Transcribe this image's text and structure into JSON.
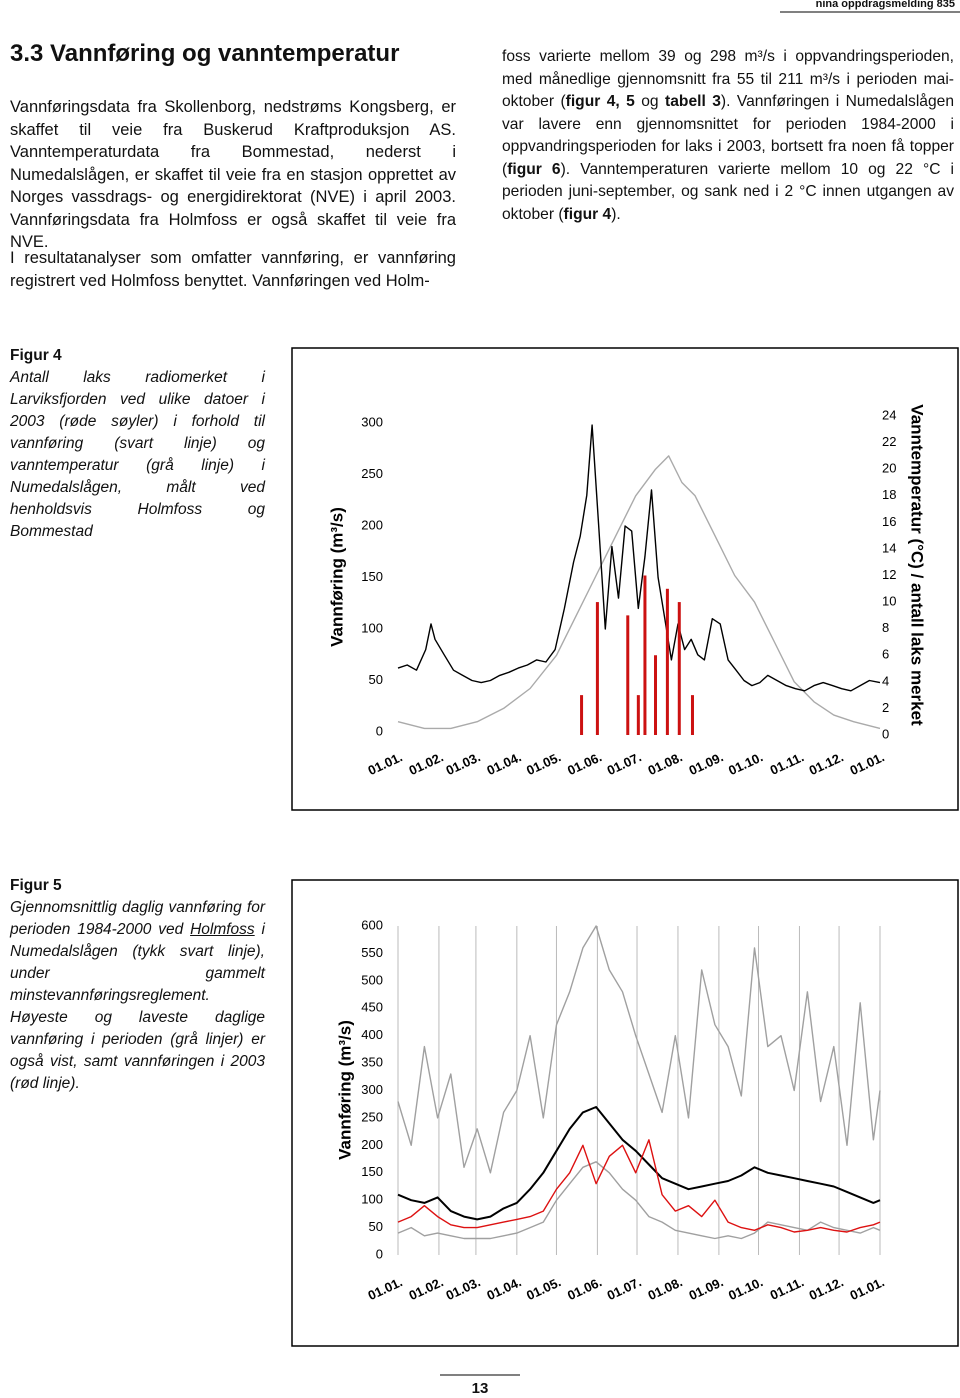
{
  "header": "nina oppdragsmelding 835",
  "section_title": "3.3 Vannføring og vanntemperatur",
  "left_paragraphs": [
    "Vannføringsdata fra Skollenborg, nedstrøms Kongsberg, er skaffet til veie fra Buskerud Kraftproduksjon AS. Vanntemperaturdata fra Bommestad, nederst i Numedalslågen, er skaffet til veie fra en stasjon opprettet av Norges vassdrags- og energidirektorat (NVE) i april 2003. Vannføringsdata fra Holmfoss er også skaffet til veie fra NVE.",
    "I resultatanalyser som omfatter vannføring, er vannføring registrert ved Holmfoss benyttet. Vannføringen ved Holm-"
  ],
  "right_paragraph": [
    "foss varierte mellom 39 og 298 m³/s i oppvandringsperioden, med månedlige gjennomsnitt fra 55 til 211 m³/s i perioden mai-oktober (",
    "figur 4, 5",
    " og ",
    "tabell 3",
    "). Vannføringen i Numedalslågen var lavere enn gjennomsnittet for perioden 1984-2000 i oppvandringsperioden for laks i 2003, bortsett fra noen få topper (",
    "figur 6",
    "). Vanntemperaturen varierte mellom 10 og 22 °C i perioden juni-september, og sank ned i 2 °C innen utgangen av oktober (",
    "figur 4",
    ")."
  ],
  "figures": [
    {
      "label": "Figur 4",
      "caption": [
        "Antall laks radiomerket i Larviksfjorden ved ulike datoer i 2003 (røde søyler) i forhold til vannføring (svart linje) og vanntemperatur (grå linje) i Numedalslågen, målt ved henholdsvis Holmfoss og Bommestad"
      ]
    },
    {
      "label": "Figur 5",
      "caption": [
        "Gjennomsnittlig daglig vannføring for perioden 1984-2000 ved ",
        "Holmfoss",
        " i Numedalslågen (tykk svart linje), under gammelt minstevannføringsreglement. Høyeste og laveste daglige vannføring i perioden (grå linjer) er også vist, samt vannføringen i 2003 (rød linje)."
      ]
    }
  ],
  "page_number": "13",
  "chart_data": [
    {
      "type": "line",
      "ylabel": "Vannføring (m³/s)",
      "y2label": "Vanntemperatur (°C) / antall laks merket",
      "xlim": [
        0,
        365
      ],
      "xticks": [
        {
          "value": 0,
          "label": "01.01."
        },
        {
          "value": 31,
          "label": "01.02."
        },
        {
          "value": 59,
          "label": "01.03."
        },
        {
          "value": 90,
          "label": "01.04."
        },
        {
          "value": 120,
          "label": "01.05."
        },
        {
          "value": 151,
          "label": "01.06."
        },
        {
          "value": 181,
          "label": "01.07."
        },
        {
          "value": 212,
          "label": "01.08."
        },
        {
          "value": 243,
          "label": "01.09."
        },
        {
          "value": 273,
          "label": "01.10."
        },
        {
          "value": 304,
          "label": "01.11."
        },
        {
          "value": 334,
          "label": "01.12."
        },
        {
          "value": 365,
          "label": "01.01."
        }
      ],
      "ylim": [
        0,
        300
      ],
      "yticks": [
        0,
        50,
        100,
        150,
        200,
        250,
        300
      ],
      "y2lim": [
        0,
        24
      ],
      "y2ticks": [
        0,
        2,
        4,
        6,
        8,
        10,
        12,
        14,
        16,
        18,
        20,
        22,
        24
      ],
      "grid": false,
      "series": [
        {
          "type": "line",
          "color": "#aaaaaa",
          "x": [
            0,
            20,
            40,
            60,
            80,
            100,
            120,
            135,
            150,
            165,
            180,
            195,
            205,
            215,
            225,
            240,
            255,
            270,
            285,
            300,
            315,
            330,
            345,
            365
          ],
          "values": [
            1,
            0.5,
            0.5,
            1,
            2,
            3.5,
            6,
            9,
            12,
            15,
            18,
            20,
            21,
            19,
            18,
            15,
            12,
            10,
            7,
            4,
            2.5,
            1.5,
            1,
            0.5
          ],
          "axis": "y2"
        },
        {
          "type": "line",
          "color": "#000000",
          "x": [
            0,
            7,
            14,
            21,
            25,
            28,
            35,
            42,
            49,
            56,
            63,
            70,
            77,
            84,
            91,
            98,
            105,
            112,
            119,
            126,
            133,
            138,
            143,
            147,
            152,
            157,
            162,
            167,
            172,
            177,
            182,
            187,
            192,
            197,
            202,
            207,
            212,
            217,
            222,
            227,
            232,
            238,
            244,
            250,
            256,
            262,
            268,
            274,
            280,
            287,
            294,
            301,
            308,
            315,
            322,
            329,
            336,
            343,
            350,
            357,
            365
          ],
          "values": [
            62,
            65,
            60,
            80,
            105,
            90,
            75,
            60,
            55,
            50,
            48,
            50,
            55,
            58,
            62,
            65,
            70,
            68,
            80,
            120,
            165,
            190,
            230,
            298,
            200,
            100,
            180,
            130,
            200,
            195,
            120,
            170,
            235,
            150,
            110,
            70,
            105,
            80,
            90,
            75,
            70,
            110,
            105,
            70,
            60,
            50,
            45,
            48,
            55,
            50,
            45,
            42,
            40,
            45,
            48,
            45,
            42,
            40,
            45,
            50,
            48
          ]
        },
        {
          "type": "bar",
          "color": "#cc1111",
          "axis": "y2",
          "x": [
            139,
            151,
            174,
            182,
            187,
            195,
            204,
            213,
            223
          ],
          "values": [
            3,
            10,
            9,
            3,
            12,
            6,
            11,
            10,
            3
          ]
        }
      ]
    },
    {
      "type": "line",
      "ylabel": "Vannføring (m³/s)",
      "xlim": [
        0,
        365
      ],
      "xticks": [
        {
          "value": 0,
          "label": "01.01."
        },
        {
          "value": 31,
          "label": "01.02."
        },
        {
          "value": 59,
          "label": "01.03."
        },
        {
          "value": 90,
          "label": "01.04."
        },
        {
          "value": 120,
          "label": "01.05."
        },
        {
          "value": 151,
          "label": "01.06."
        },
        {
          "value": 181,
          "label": "01.07."
        },
        {
          "value": 212,
          "label": "01.08."
        },
        {
          "value": 243,
          "label": "01.09."
        },
        {
          "value": 273,
          "label": "01.10."
        },
        {
          "value": 304,
          "label": "01.11."
        },
        {
          "value": 334,
          "label": "01.12."
        },
        {
          "value": 365,
          "label": "01.01."
        }
      ],
      "ylim": [
        0,
        600
      ],
      "yticks": [
        0,
        50,
        100,
        150,
        200,
        250,
        300,
        350,
        400,
        450,
        500,
        550,
        600
      ],
      "grid": true,
      "series": [
        {
          "type": "line",
          "color": "#a0a0a0",
          "x": [
            0,
            10,
            20,
            30,
            40,
            50,
            60,
            70,
            80,
            90,
            100,
            110,
            120,
            130,
            140,
            150,
            160,
            170,
            180,
            190,
            200,
            210,
            220,
            230,
            240,
            250,
            260,
            270,
            280,
            290,
            300,
            310,
            320,
            330,
            340,
            350,
            360,
            365
          ],
          "values": [
            280,
            200,
            380,
            250,
            330,
            160,
            230,
            150,
            260,
            300,
            400,
            250,
            420,
            480,
            560,
            600,
            520,
            480,
            400,
            330,
            260,
            400,
            250,
            520,
            420,
            380,
            290,
            560,
            380,
            400,
            300,
            480,
            280,
            380,
            200,
            460,
            210,
            300
          ]
        },
        {
          "type": "line",
          "color": "#a0a0a0",
          "x": [
            0,
            10,
            20,
            30,
            40,
            50,
            60,
            70,
            80,
            90,
            100,
            110,
            120,
            130,
            140,
            150,
            160,
            170,
            180,
            190,
            200,
            210,
            220,
            230,
            240,
            250,
            260,
            270,
            280,
            290,
            300,
            310,
            320,
            330,
            340,
            350,
            360,
            365
          ],
          "values": [
            40,
            50,
            35,
            40,
            35,
            30,
            30,
            30,
            35,
            40,
            50,
            60,
            100,
            130,
            160,
            170,
            150,
            120,
            100,
            70,
            60,
            45,
            40,
            35,
            30,
            35,
            30,
            40,
            60,
            55,
            50,
            45,
            60,
            50,
            45,
            40,
            50,
            45
          ]
        },
        {
          "type": "line",
          "color": "#000000",
          "width": 2,
          "x": [
            0,
            10,
            20,
            30,
            40,
            50,
            60,
            70,
            80,
            90,
            100,
            110,
            120,
            130,
            140,
            150,
            160,
            170,
            180,
            190,
            200,
            210,
            220,
            230,
            240,
            250,
            260,
            270,
            280,
            290,
            300,
            310,
            320,
            330,
            340,
            350,
            360,
            365
          ],
          "values": [
            110,
            100,
            95,
            105,
            80,
            70,
            65,
            70,
            85,
            95,
            120,
            150,
            190,
            230,
            260,
            270,
            240,
            210,
            190,
            165,
            140,
            130,
            120,
            125,
            130,
            135,
            145,
            160,
            150,
            145,
            140,
            135,
            130,
            125,
            115,
            105,
            95,
            100
          ]
        },
        {
          "type": "line",
          "color": "#dd1111",
          "x": [
            0,
            10,
            20,
            30,
            40,
            50,
            60,
            70,
            80,
            90,
            100,
            110,
            120,
            130,
            140,
            150,
            160,
            170,
            180,
            190,
            200,
            210,
            220,
            230,
            240,
            250,
            260,
            270,
            280,
            290,
            300,
            310,
            320,
            330,
            340,
            350,
            360,
            365
          ],
          "values": [
            60,
            70,
            90,
            70,
            55,
            50,
            50,
            55,
            60,
            65,
            70,
            80,
            120,
            150,
            200,
            130,
            180,
            200,
            150,
            210,
            110,
            80,
            90,
            70,
            100,
            60,
            50,
            45,
            55,
            50,
            42,
            45,
            50,
            45,
            42,
            50,
            55,
            60
          ]
        }
      ]
    }
  ]
}
